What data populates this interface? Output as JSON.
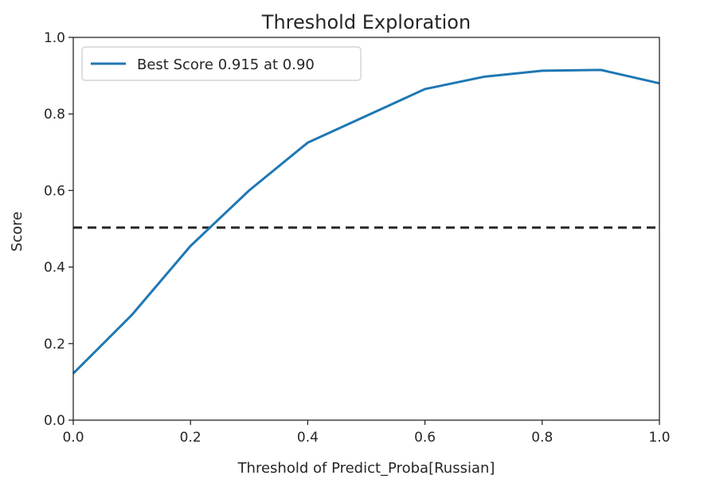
{
  "chart_data": {
    "type": "line",
    "title": "Threshold Exploration",
    "xlabel": "Threshold of Predict_Proba[Russian]",
    "ylabel": "Score",
    "xlim": [
      0.0,
      1.0
    ],
    "ylim": [
      0.0,
      1.0
    ],
    "xticks": [
      "0.0",
      "0.2",
      "0.4",
      "0.6",
      "0.8",
      "1.0"
    ],
    "yticks": [
      "0.0",
      "0.2",
      "0.4",
      "0.6",
      "0.8",
      "1.0"
    ],
    "grid": false,
    "legend_position": "top-left",
    "series": [
      {
        "name": "Best Score 0.915 at 0.90",
        "color": "#1f77b4",
        "x": [
          0.0,
          0.1,
          0.2,
          0.3,
          0.4,
          0.5,
          0.6,
          0.7,
          0.8,
          0.9,
          1.0
        ],
        "y": [
          0.122,
          0.275,
          0.455,
          0.6,
          0.725,
          0.795,
          0.865,
          0.897,
          0.913,
          0.915,
          0.88
        ]
      }
    ],
    "reference_line": {
      "y": 0.503,
      "style": "dashed",
      "color": "#262626"
    }
  }
}
